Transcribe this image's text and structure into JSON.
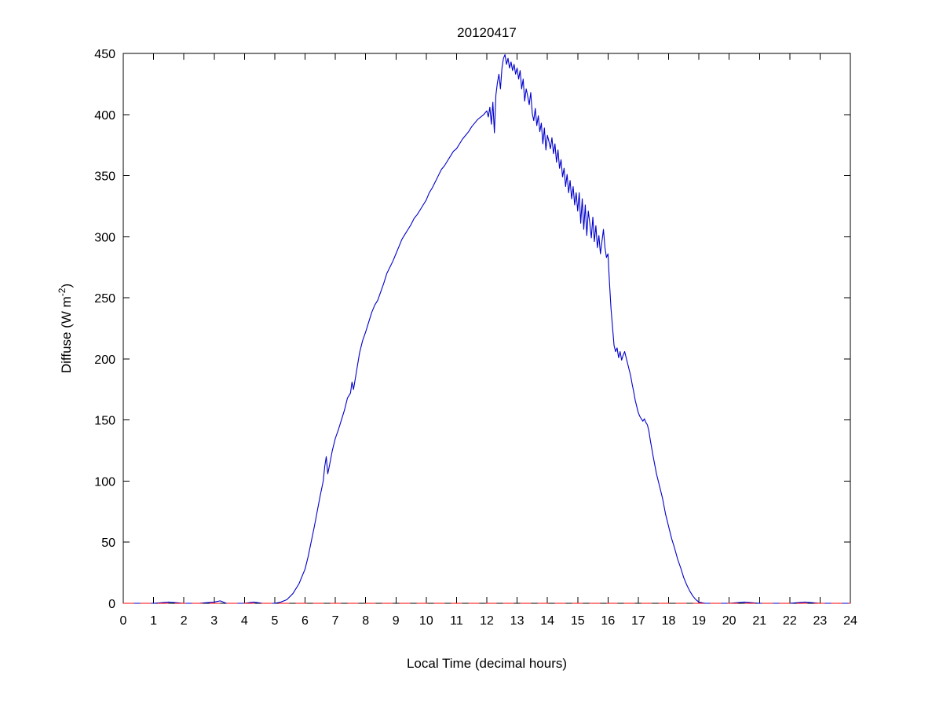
{
  "chart_data": {
    "type": "line",
    "title": "20120417",
    "xlabel": "Local Time (decimal hours)",
    "ylabel": "Diffuse (W m^-2)",
    "ylabel_parts": {
      "pre": "Diffuse (W m",
      "sup": "-2",
      "post": ")"
    },
    "xlim": [
      0,
      24
    ],
    "ylim": [
      0,
      450
    ],
    "xticks": [
      0,
      1,
      2,
      3,
      4,
      5,
      6,
      7,
      8,
      9,
      10,
      11,
      12,
      13,
      14,
      15,
      16,
      17,
      18,
      19,
      20,
      21,
      22,
      23,
      24
    ],
    "yticks": [
      0,
      50,
      100,
      150,
      200,
      250,
      300,
      350,
      400,
      450
    ],
    "grid": false,
    "legend": null,
    "colors": {
      "series_line": "#0000cc",
      "zero_line": "#ff0000",
      "axis": "#000000"
    },
    "series": [
      {
        "name": "diffuse-irradiance",
        "color": "#0000cc",
        "style": "solid",
        "points": [
          [
            0,
            0
          ],
          [
            0.5,
            0
          ],
          [
            1,
            0
          ],
          [
            1.5,
            1
          ],
          [
            2,
            0
          ],
          [
            2.5,
            0
          ],
          [
            3,
            1
          ],
          [
            3.2,
            2
          ],
          [
            3.4,
            0
          ],
          [
            4,
            0
          ],
          [
            4.3,
            1
          ],
          [
            4.6,
            0
          ],
          [
            5,
            0
          ],
          [
            5.2,
            1
          ],
          [
            5.4,
            3
          ],
          [
            5.6,
            8
          ],
          [
            5.8,
            16
          ],
          [
            6,
            28
          ],
          [
            6.1,
            38
          ],
          [
            6.2,
            50
          ],
          [
            6.3,
            62
          ],
          [
            6.4,
            75
          ],
          [
            6.5,
            88
          ],
          [
            6.6,
            100
          ],
          [
            6.65,
            112
          ],
          [
            6.7,
            120
          ],
          [
            6.75,
            106
          ],
          [
            6.8,
            112
          ],
          [
            6.9,
            125
          ],
          [
            7,
            135
          ],
          [
            7.1,
            142
          ],
          [
            7.2,
            150
          ],
          [
            7.3,
            158
          ],
          [
            7.4,
            168
          ],
          [
            7.5,
            172
          ],
          [
            7.55,
            181
          ],
          [
            7.6,
            175
          ],
          [
            7.7,
            190
          ],
          [
            7.8,
            205
          ],
          [
            7.9,
            215
          ],
          [
            8,
            222
          ],
          [
            8.1,
            230
          ],
          [
            8.2,
            238
          ],
          [
            8.3,
            244
          ],
          [
            8.4,
            248
          ],
          [
            8.5,
            255
          ],
          [
            8.6,
            262
          ],
          [
            8.7,
            270
          ],
          [
            8.8,
            275
          ],
          [
            8.9,
            280
          ],
          [
            9,
            286
          ],
          [
            9.1,
            292
          ],
          [
            9.2,
            298
          ],
          [
            9.3,
            302
          ],
          [
            9.4,
            306
          ],
          [
            9.5,
            310
          ],
          [
            9.6,
            315
          ],
          [
            9.7,
            318
          ],
          [
            9.8,
            322
          ],
          [
            9.9,
            326
          ],
          [
            10,
            330
          ],
          [
            10.1,
            336
          ],
          [
            10.2,
            340
          ],
          [
            10.3,
            345
          ],
          [
            10.4,
            350
          ],
          [
            10.5,
            355
          ],
          [
            10.6,
            358
          ],
          [
            10.7,
            362
          ],
          [
            10.8,
            366
          ],
          [
            10.9,
            370
          ],
          [
            11,
            372
          ],
          [
            11.1,
            376
          ],
          [
            11.2,
            380
          ],
          [
            11.3,
            383
          ],
          [
            11.4,
            386
          ],
          [
            11.5,
            390
          ],
          [
            11.6,
            393
          ],
          [
            11.7,
            396
          ],
          [
            11.8,
            398
          ],
          [
            11.9,
            400
          ],
          [
            12,
            403
          ],
          [
            12.05,
            398
          ],
          [
            12.1,
            406
          ],
          [
            12.15,
            392
          ],
          [
            12.2,
            410
          ],
          [
            12.25,
            385
          ],
          [
            12.3,
            416
          ],
          [
            12.35,
            426
          ],
          [
            12.4,
            433
          ],
          [
            12.45,
            421
          ],
          [
            12.5,
            438
          ],
          [
            12.55,
            446
          ],
          [
            12.6,
            449
          ],
          [
            12.65,
            441
          ],
          [
            12.7,
            446
          ],
          [
            12.75,
            438
          ],
          [
            12.8,
            443
          ],
          [
            12.85,
            436
          ],
          [
            12.9,
            441
          ],
          [
            12.95,
            433
          ],
          [
            13,
            438
          ],
          [
            13.05,
            429
          ],
          [
            13.1,
            436
          ],
          [
            13.15,
            421
          ],
          [
            13.2,
            429
          ],
          [
            13.25,
            411
          ],
          [
            13.3,
            421
          ],
          [
            13.35,
            415
          ],
          [
            13.4,
            408
          ],
          [
            13.45,
            418
          ],
          [
            13.5,
            401
          ],
          [
            13.55,
            395
          ],
          [
            13.6,
            405
          ],
          [
            13.65,
            391
          ],
          [
            13.7,
            399
          ],
          [
            13.75,
            386
          ],
          [
            13.8,
            393
          ],
          [
            13.85,
            376
          ],
          [
            13.9,
            389
          ],
          [
            13.95,
            371
          ],
          [
            14,
            383
          ],
          [
            14.05,
            378
          ],
          [
            14.1,
            372
          ],
          [
            14.15,
            381
          ],
          [
            14.2,
            368
          ],
          [
            14.25,
            376
          ],
          [
            14.3,
            361
          ],
          [
            14.35,
            371
          ],
          [
            14.4,
            356
          ],
          [
            14.45,
            363
          ],
          [
            14.5,
            349
          ],
          [
            14.55,
            356
          ],
          [
            14.6,
            341
          ],
          [
            14.65,
            351
          ],
          [
            14.7,
            336
          ],
          [
            14.75,
            346
          ],
          [
            14.8,
            331
          ],
          [
            14.85,
            341
          ],
          [
            14.9,
            326
          ],
          [
            14.95,
            336
          ],
          [
            15,
            321
          ],
          [
            15.05,
            336
          ],
          [
            15.1,
            311
          ],
          [
            15.15,
            331
          ],
          [
            15.2,
            306
          ],
          [
            15.25,
            326
          ],
          [
            15.3,
            301
          ],
          [
            15.35,
            321
          ],
          [
            15.4,
            311
          ],
          [
            15.45,
            299
          ],
          [
            15.5,
            316
          ],
          [
            15.55,
            296
          ],
          [
            15.6,
            309
          ],
          [
            15.65,
            291
          ],
          [
            15.7,
            301
          ],
          [
            15.75,
            286
          ],
          [
            15.8,
            296
          ],
          [
            15.85,
            306
          ],
          [
            15.9,
            291
          ],
          [
            15.95,
            283
          ],
          [
            16,
            286
          ],
          [
            16.05,
            262
          ],
          [
            16.1,
            241
          ],
          [
            16.15,
            226
          ],
          [
            16.2,
            211
          ],
          [
            16.25,
            206
          ],
          [
            16.3,
            209
          ],
          [
            16.35,
            201
          ],
          [
            16.4,
            206
          ],
          [
            16.45,
            199
          ],
          [
            16.5,
            203
          ],
          [
            16.55,
            206
          ],
          [
            16.6,
            201
          ],
          [
            16.65,
            196
          ],
          [
            16.7,
            191
          ],
          [
            16.75,
            186
          ],
          [
            16.8,
            179
          ],
          [
            16.85,
            173
          ],
          [
            16.9,
            166
          ],
          [
            16.95,
            161
          ],
          [
            17,
            156
          ],
          [
            17.05,
            153
          ],
          [
            17.1,
            151
          ],
          [
            17.15,
            149
          ],
          [
            17.2,
            151
          ],
          [
            17.25,
            148
          ],
          [
            17.3,
            146
          ],
          [
            17.35,
            141
          ],
          [
            17.4,
            133
          ],
          [
            17.45,
            126
          ],
          [
            17.5,
            119
          ],
          [
            17.6,
            106
          ],
          [
            17.7,
            96
          ],
          [
            17.8,
            86
          ],
          [
            17.9,
            73
          ],
          [
            18,
            63
          ],
          [
            18.1,
            53
          ],
          [
            18.2,
            45
          ],
          [
            18.3,
            36
          ],
          [
            18.4,
            29
          ],
          [
            18.5,
            21
          ],
          [
            18.6,
            15
          ],
          [
            18.7,
            10
          ],
          [
            18.8,
            6
          ],
          [
            18.9,
            3
          ],
          [
            19,
            1
          ],
          [
            19.2,
            0
          ],
          [
            19.5,
            0
          ],
          [
            20,
            0
          ],
          [
            20.5,
            1
          ],
          [
            21,
            0
          ],
          [
            21.5,
            0
          ],
          [
            22,
            0
          ],
          [
            22.5,
            1
          ],
          [
            23,
            0
          ],
          [
            23.5,
            0
          ],
          [
            24,
            0
          ]
        ]
      },
      {
        "name": "zero-reference-line",
        "color": "#ff0000",
        "style": "dashed",
        "points": [
          [
            0,
            0
          ],
          [
            24,
            0
          ]
        ]
      }
    ]
  }
}
